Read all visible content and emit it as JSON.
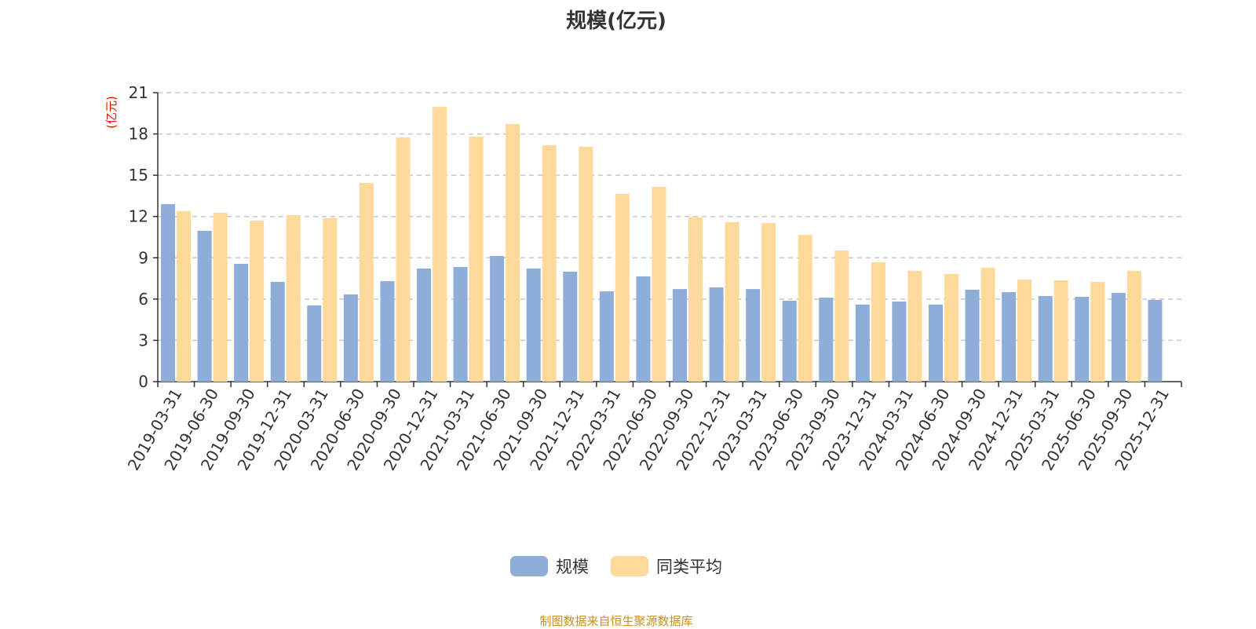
{
  "chart_data": {
    "type": "bar",
    "title": "规模(亿元)",
    "ylabel": "(亿元)",
    "ylim": [
      0,
      21
    ],
    "yticks": [
      0,
      3,
      6,
      9,
      12,
      15,
      18,
      21
    ],
    "grid": true,
    "legend_position": "bottom",
    "categories": [
      "2019-03-31",
      "2019-06-30",
      "2019-09-30",
      "2019-12-31",
      "2020-03-31",
      "2020-06-30",
      "2020-09-30",
      "2020-12-31",
      "2021-03-31",
      "2021-06-30",
      "2021-09-30",
      "2021-12-31",
      "2022-03-31",
      "2022-06-30",
      "2022-09-30",
      "2022-12-31",
      "2023-03-31",
      "2023-06-30",
      "2023-09-30",
      "2023-12-31",
      "2024-03-31",
      "2024-06-30",
      "2024-09-30",
      "2024-12-31",
      "2025-03-31",
      "2025-06-30",
      "2025-09-30",
      "2025-12-31"
    ],
    "series": [
      {
        "name": "规模",
        "color": "#8eadd9",
        "values": [
          12.9,
          10.96,
          8.56,
          7.25,
          5.54,
          6.34,
          7.3,
          8.22,
          8.33,
          9.13,
          8.22,
          7.99,
          6.56,
          7.65,
          6.73,
          6.85,
          6.73,
          5.88,
          6.1,
          5.6,
          5.82,
          5.6,
          6.68,
          6.5,
          6.22,
          6.16,
          6.45,
          5.94
        ]
      },
      {
        "name": "同类平均",
        "color": "#ffd99a",
        "values": [
          12.39,
          12.27,
          11.7,
          12.1,
          11.87,
          14.44,
          17.75,
          19.98,
          17.8,
          18.72,
          17.18,
          17.07,
          13.64,
          14.16,
          11.93,
          11.59,
          11.53,
          10.67,
          9.53,
          8.68,
          8.05,
          7.82,
          8.28,
          7.42,
          7.36,
          7.25,
          8.05,
          null
        ]
      }
    ]
  },
  "source": "制图数据来自恒生聚源数据库"
}
